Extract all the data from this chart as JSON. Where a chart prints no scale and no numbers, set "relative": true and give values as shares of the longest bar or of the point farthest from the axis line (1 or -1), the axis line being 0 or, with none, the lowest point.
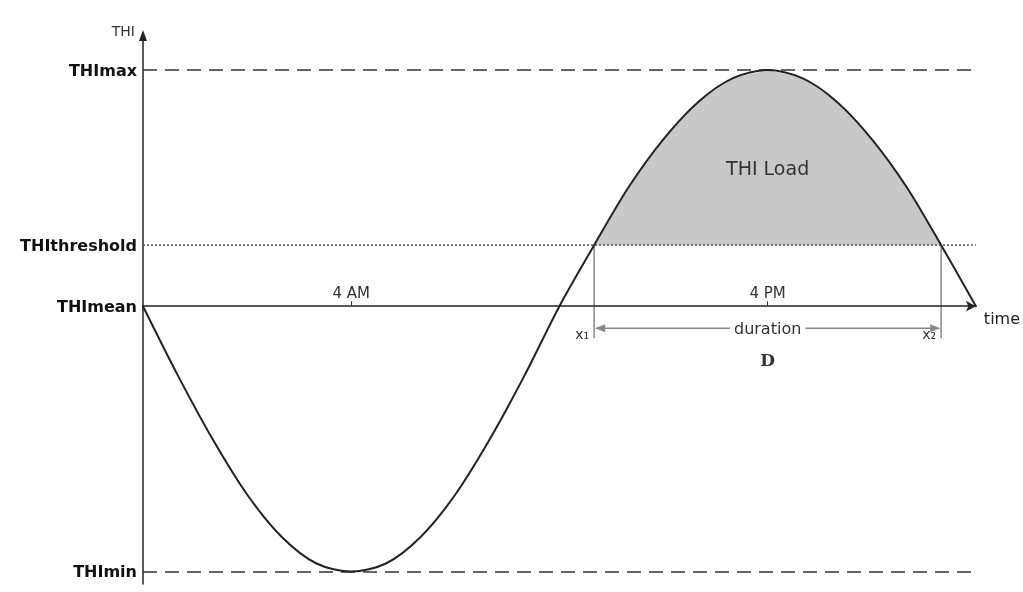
{
  "chart_data": {
    "type": "line",
    "relative": true,
    "ylabel": "THI",
    "xlabel": "time",
    "categories": [
      null,
      null,
      null,
      null,
      null,
      null,
      "4 AM",
      null,
      null,
      null,
      null,
      null,
      null,
      null,
      null,
      null,
      null,
      null,
      "4 PM",
      null,
      null,
      null,
      null,
      null,
      null
    ],
    "series": [
      {
        "color": "#222222",
        "values": [
          0,
          -0.26,
          -0.5,
          -0.71,
          -0.87,
          -0.97,
          -1,
          -0.97,
          -0.87,
          -0.71,
          -0.5,
          -0.26,
          0,
          0.23,
          0.45,
          0.63,
          0.77,
          0.86,
          0.89,
          0.86,
          0.77,
          0.63,
          0.45,
          0.23,
          0
        ],
        "lower": [
          null,
          null,
          null,
          null,
          null,
          null,
          null,
          null,
          null,
          null,
          null,
          null,
          null,
          0.23,
          0.23,
          0.23,
          0.23,
          0.23,
          0.23,
          0.23,
          0.23,
          0.23,
          0.23,
          0.23,
          null
        ],
        "upper": [
          null,
          null,
          null,
          null,
          null,
          null,
          null,
          null,
          null,
          null,
          null,
          null,
          null,
          0.23,
          0.45,
          0.63,
          0.77,
          0.86,
          0.89,
          0.86,
          0.77,
          0.63,
          0.45,
          0.23,
          null
        ]
      }
    ],
    "ref_lines": [
      {
        "axis": "y",
        "value": 0.89,
        "label": "THImax",
        "color": "#333333",
        "line_style": "dashed"
      },
      {
        "axis": "y",
        "value": -1,
        "label": "THImin",
        "color": "#333333",
        "line_style": "dashed"
      },
      {
        "axis": "y",
        "value": 0.23,
        "label": "THIthreshold",
        "color": "#555555",
        "line_style": "dotted"
      }
    ],
    "annotations": [
      "THI Load",
      "x₁",
      "x₂",
      "duration",
      "D",
      "THImean"
    ]
  }
}
